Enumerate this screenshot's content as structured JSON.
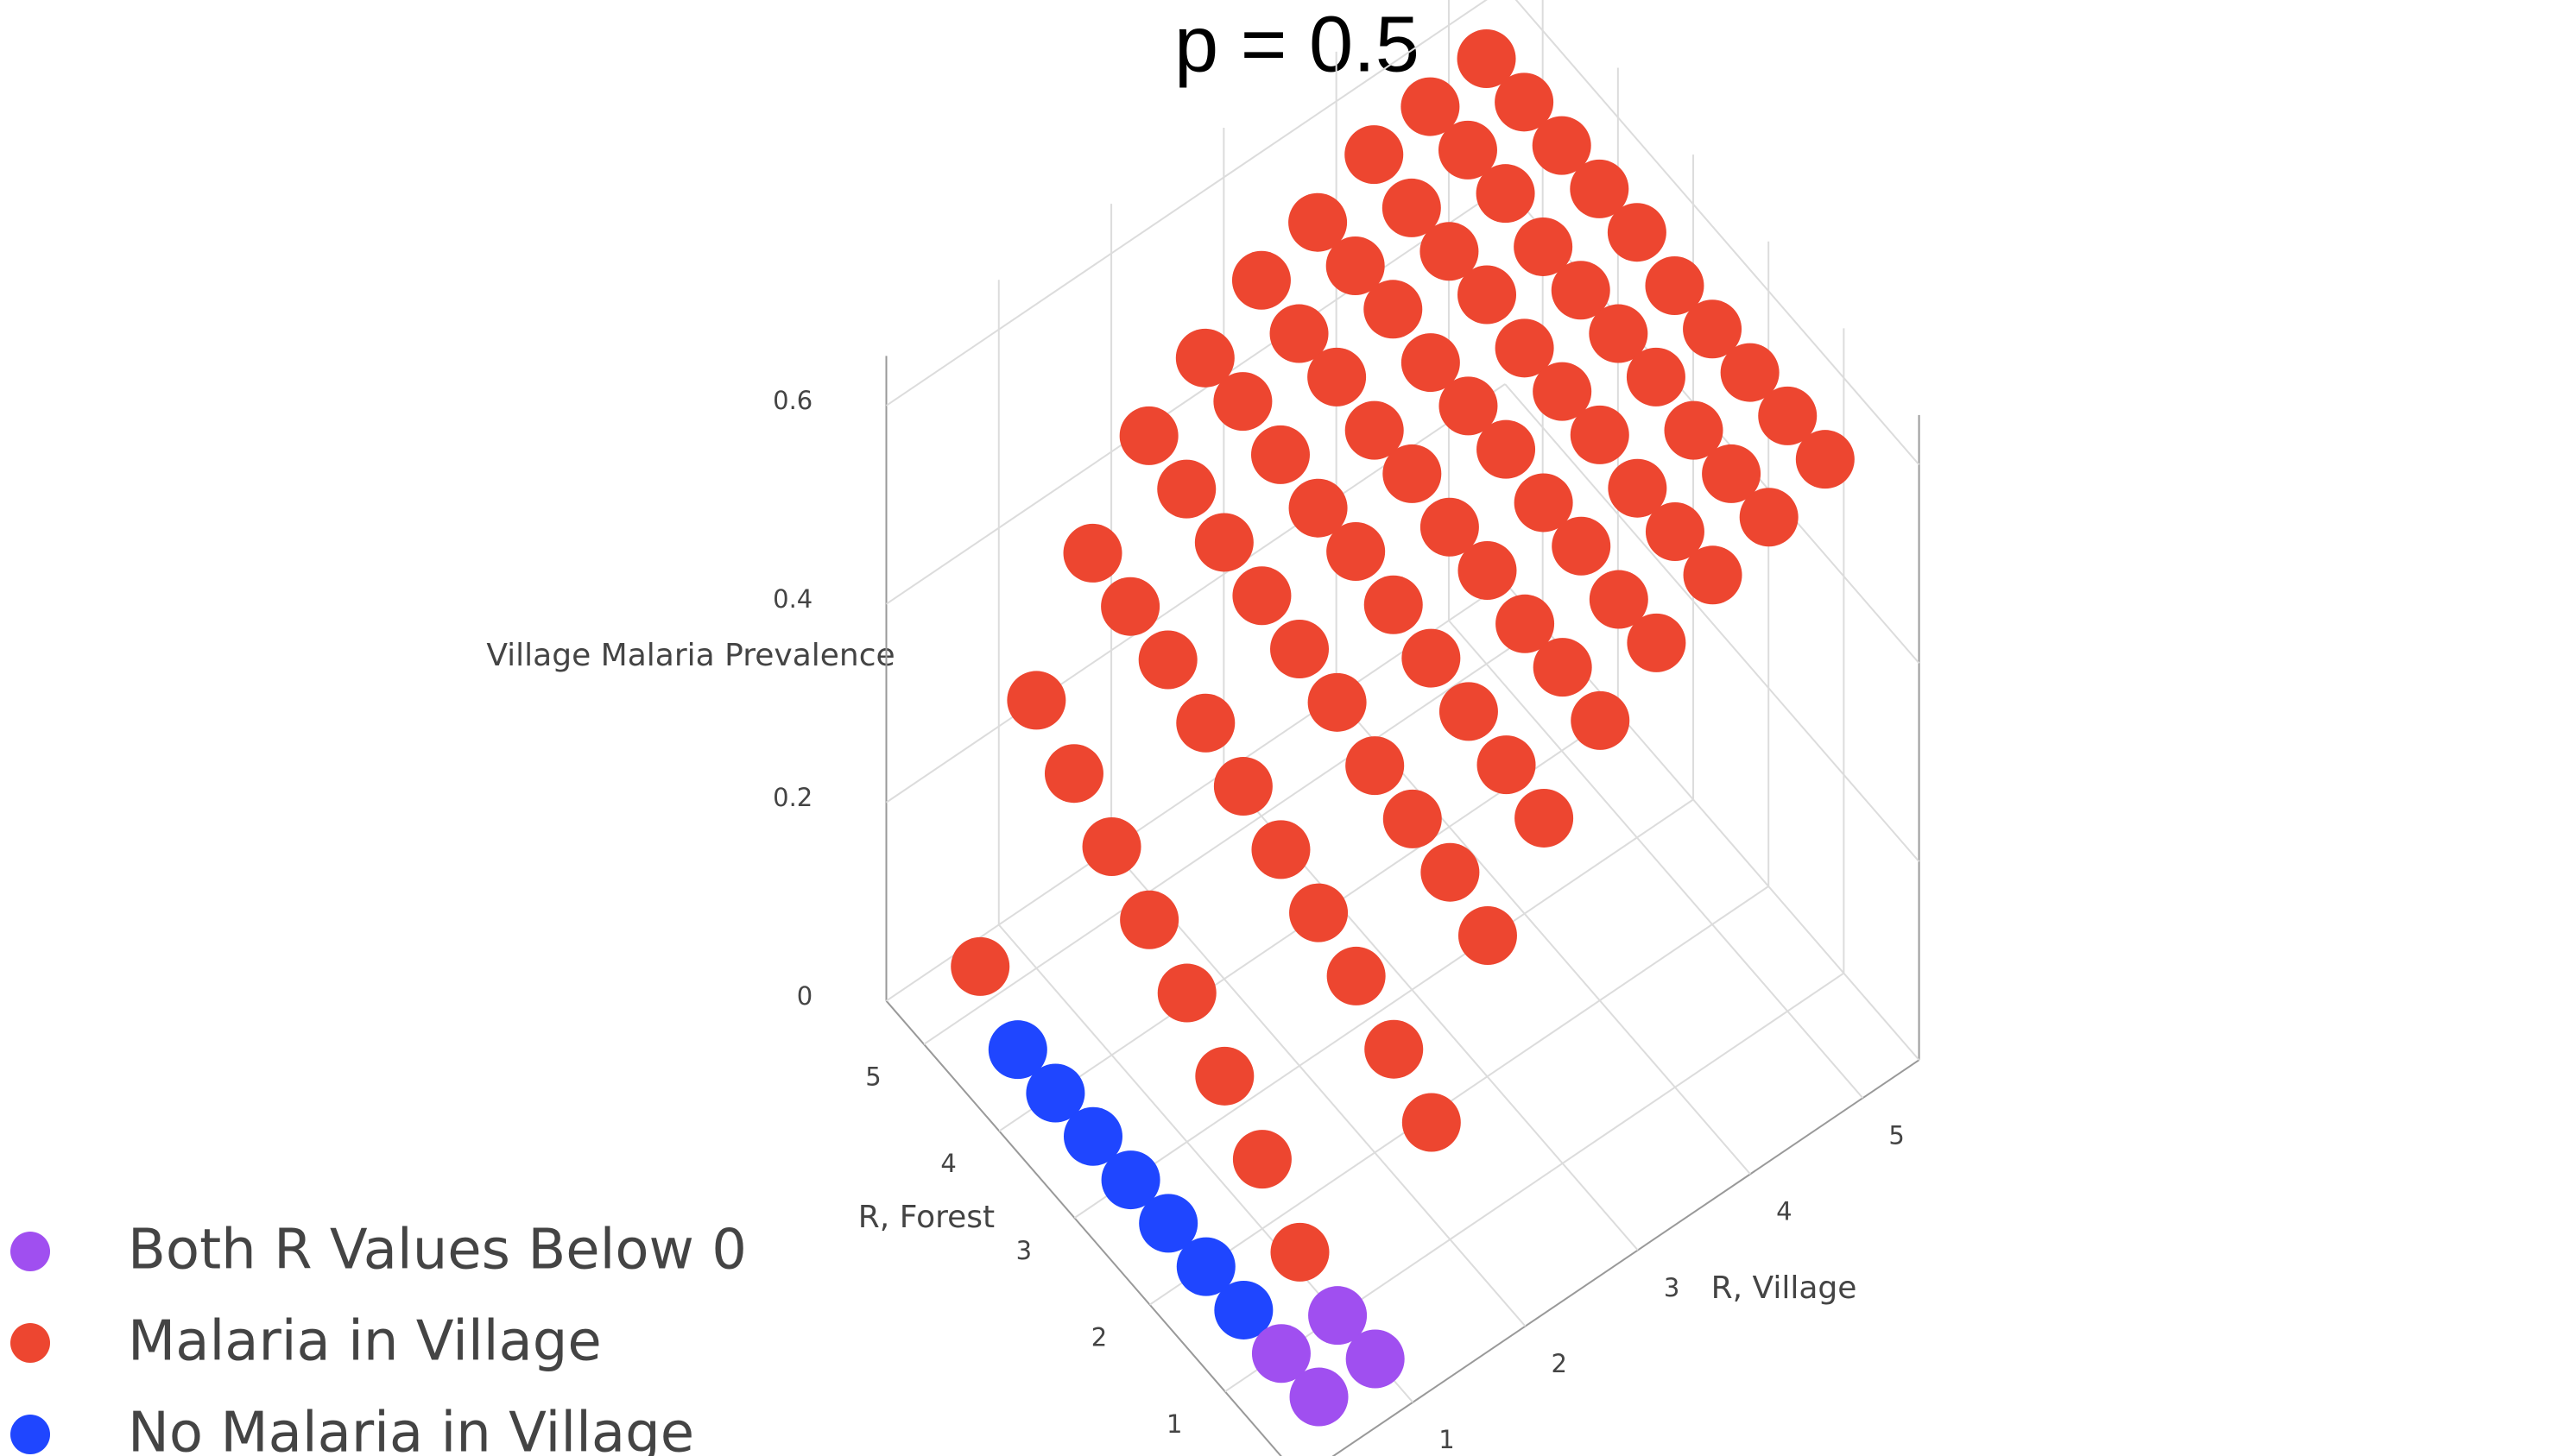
{
  "chart_data": {
    "type": "scatter3d",
    "title": "p = 0.5",
    "xlabel": "R, Village",
    "ylabel": "R, Forest",
    "zlabel": "Village Malaria Prevalence",
    "xlim": [
      0,
      5.5
    ],
    "ylim": [
      0,
      5.5
    ],
    "zlim": [
      0,
      0.65
    ],
    "xticks": [
      1,
      2,
      3,
      4,
      5
    ],
    "yticks": [
      1,
      2,
      3,
      4,
      5
    ],
    "zticks": [
      0,
      0.2,
      0.4,
      0.6
    ],
    "grid": true,
    "legend": "bottom-left",
    "series": [
      {
        "name": "Both R Values Below 0",
        "color": "#a04ff0",
        "x": [
          0.5,
          0.5,
          1,
          1
        ],
        "y": [
          0.5,
          1,
          0.5,
          1
        ],
        "z": [
          0,
          0,
          0,
          0
        ]
      },
      {
        "name": "Malaria in Village",
        "color": "#ed4630",
        "x": [
          0.5,
          1,
          1,
          1,
          1,
          1,
          1,
          1,
          1,
          1.5,
          1.5,
          1.5,
          1.5,
          1.5,
          1.5,
          1.5,
          1.5,
          1.5,
          1.5,
          2,
          2,
          2,
          2,
          2,
          2,
          2,
          2,
          2,
          2,
          2.5,
          2.5,
          2.5,
          2.5,
          2.5,
          2.5,
          2.5,
          2.5,
          2.5,
          2.5,
          3,
          3,
          3,
          3,
          3,
          3,
          3,
          3,
          3,
          3,
          3.5,
          3.5,
          3.5,
          3.5,
          3.5,
          3.5,
          3.5,
          3.5,
          3.5,
          3.5,
          4,
          4,
          4,
          4,
          4,
          4,
          4,
          4,
          4,
          4,
          4.5,
          4.5,
          4.5,
          4.5,
          4.5,
          4.5,
          4.5,
          4.5,
          4.5,
          4.5,
          5,
          5,
          5,
          5,
          5,
          5,
          5,
          5,
          5,
          5
        ],
        "y": [
          5,
          1.5,
          2,
          2.5,
          3,
          3.5,
          4,
          4.5,
          5,
          0.5,
          1,
          1.5,
          2,
          2.5,
          3,
          3.5,
          4,
          4.5,
          5,
          0.5,
          1,
          1.5,
          2,
          2.5,
          3,
          3.5,
          4,
          4.5,
          5,
          0.5,
          1,
          1.5,
          2,
          2.5,
          3,
          3.5,
          4,
          4.5,
          5,
          0.5,
          1,
          1.5,
          2,
          2.5,
          3,
          3.5,
          4,
          4.5,
          5,
          0.5,
          1,
          1.5,
          2,
          2.5,
          3,
          3.5,
          4,
          4.5,
          5,
          0.5,
          1,
          1.5,
          2,
          2.5,
          3,
          3.5,
          4,
          4.5,
          5,
          0.5,
          1,
          1.5,
          2,
          2.5,
          3,
          3.5,
          4,
          4.5,
          5,
          0.5,
          1,
          1.5,
          2,
          2.5,
          3,
          3.5,
          4,
          4.5,
          5
        ],
        "z": [
          0.04,
          0.02,
          0.07,
          0.11,
          0.15,
          0.18,
          0.21,
          0.24,
          0.27,
          0.2,
          0.23,
          0.26,
          0.28,
          0.3,
          0.32,
          0.34,
          0.36,
          0.37,
          0.38,
          0.35,
          0.37,
          0.38,
          0.39,
          0.41,
          0.42,
          0.43,
          0.44,
          0.45,
          0.46,
          0.43,
          0.44,
          0.45,
          0.46,
          0.47,
          0.48,
          0.48,
          0.49,
          0.5,
          0.5,
          0.49,
          0.5,
          0.5,
          0.51,
          0.51,
          0.52,
          0.52,
          0.53,
          0.53,
          0.54,
          0.53,
          0.53,
          0.54,
          0.54,
          0.55,
          0.55,
          0.55,
          0.56,
          0.56,
          0.56,
          0.56,
          0.56,
          0.56,
          0.57,
          0.57,
          0.57,
          0.58,
          0.58,
          0.58,
          0.59,
          0.58,
          0.58,
          0.58,
          0.59,
          0.59,
          0.59,
          0.59,
          0.6,
          0.6,
          0.6,
          0.6,
          0.6,
          0.6,
          0.6,
          0.6,
          0.61,
          0.61,
          0.61,
          0.61,
          0.61
        ]
      },
      {
        "name": "No Malaria in Village",
        "color": "#1f46ff",
        "x": [
          0.5,
          0.5,
          0.5,
          0.5,
          0.5,
          0.5,
          0.5
        ],
        "y": [
          1.5,
          2,
          2.5,
          3,
          3.5,
          4,
          4.5
        ],
        "z": [
          0,
          0,
          0,
          0,
          0,
          0,
          0
        ]
      }
    ]
  }
}
